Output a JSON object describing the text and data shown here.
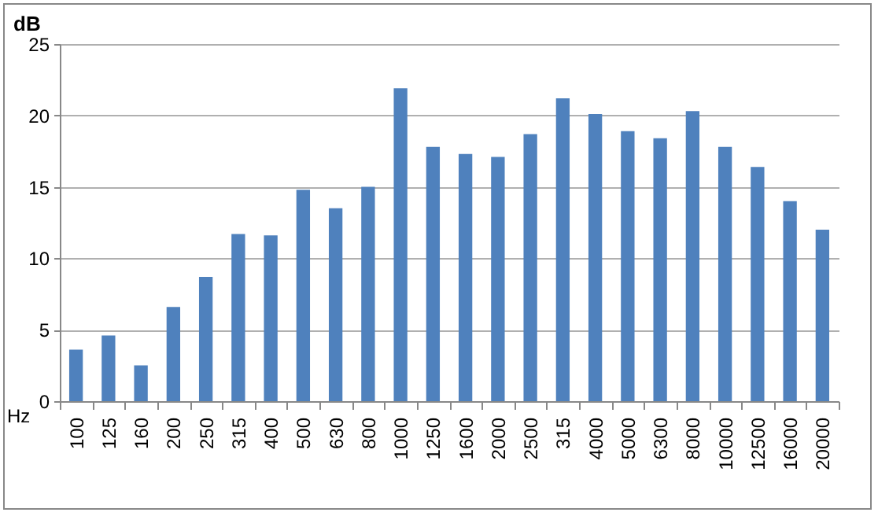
{
  "chart_data": {
    "type": "bar",
    "xlabel": "Hz",
    "ylabel": "dB",
    "categories": [
      "100",
      "125",
      "160",
      "200",
      "250",
      "315",
      "400",
      "500",
      "630",
      "800",
      "1000",
      "1250",
      "1600",
      "2000",
      "2500",
      "315",
      "4000",
      "5000",
      "6300",
      "8000",
      "10000",
      "12500",
      "16000",
      "20000"
    ],
    "values": [
      3.6,
      4.6,
      2.5,
      6.6,
      8.7,
      11.7,
      11.6,
      14.8,
      13.5,
      15.0,
      21.9,
      17.8,
      17.3,
      17.1,
      18.7,
      21.2,
      20.1,
      18.9,
      18.4,
      20.3,
      17.8,
      16.4,
      14.0,
      12.0
    ],
    "color": "#4f81bd",
    "ylim": [
      0,
      25
    ],
    "yticks": [
      0,
      5,
      10,
      15,
      20,
      25
    ],
    "grid": "y"
  }
}
